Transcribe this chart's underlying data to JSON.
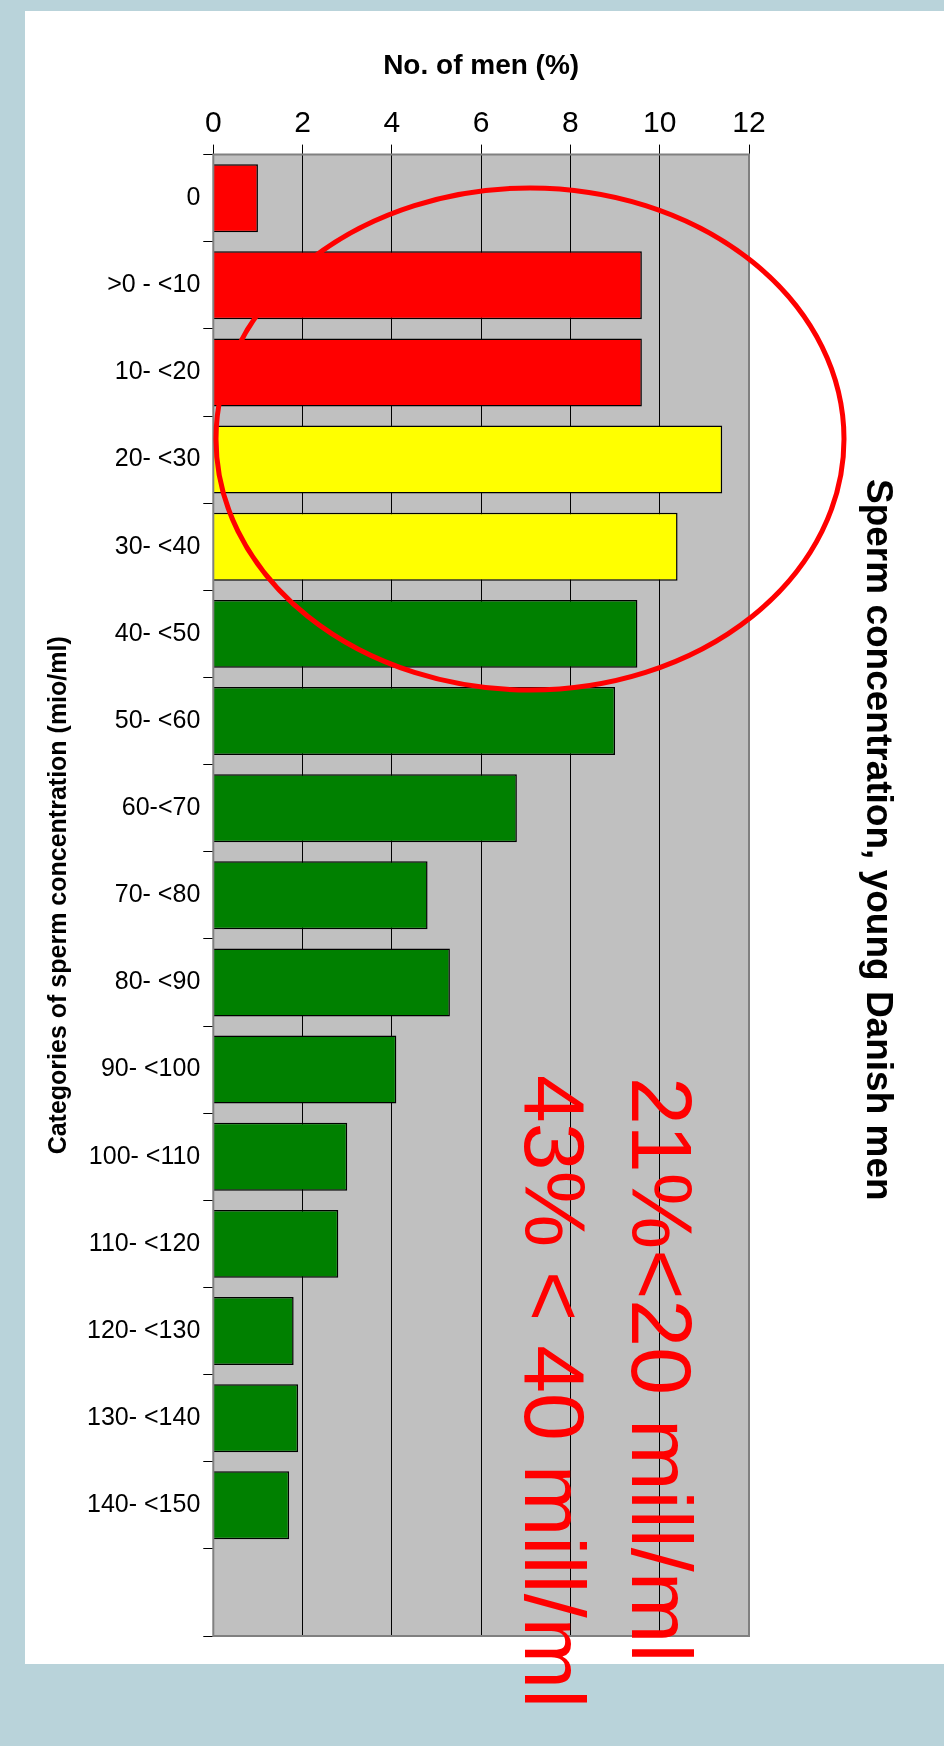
{
  "chart_data": {
    "type": "bar",
    "title": "Sperm concentration, young Danish men",
    "xlabel": "No. of men (%)",
    "ylabel": "Categories of sperm concentration (mio/ml)",
    "orientation": "horizontal",
    "categories": [
      "0",
      ">0 - <10",
      "10- <20",
      "20- <30",
      "30- <40",
      "40- <50",
      "50- <60",
      "60-<70",
      "70- <80",
      "80- <90",
      "90- <100",
      "100- <110",
      "110- <120",
      "120- <130",
      "130- <140",
      "140- <150",
      null
    ],
    "values": [
      1.0,
      9.6,
      9.6,
      11.4,
      10.4,
      9.5,
      9.0,
      6.8,
      4.8,
      5.3,
      4.1,
      3.0,
      2.8,
      1.8,
      1.9,
      1.7,
      null
    ],
    "colors": [
      "#ff0000",
      "#ff0000",
      "#ff0000",
      "#ffff00",
      "#ffff00",
      "#008000",
      "#008000",
      "#008000",
      "#008000",
      "#008000",
      "#008000",
      "#008000",
      "#008000",
      "#008000",
      "#008000",
      "#008000",
      "#008000"
    ],
    "xlim": [
      0,
      12
    ],
    "xticks": [
      0,
      2,
      4,
      6,
      8,
      10,
      12
    ],
    "grid": "x",
    "annotations": [
      "21%<20 mill/ml",
      "43% < 40 mill/ml"
    ]
  }
}
